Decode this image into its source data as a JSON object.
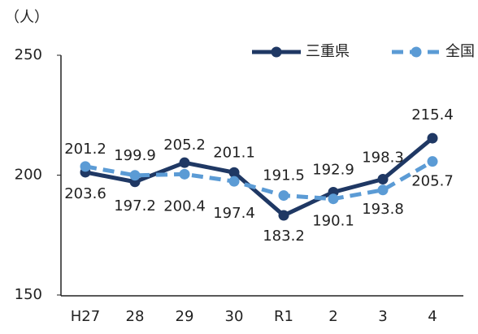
{
  "chart_data": {
    "type": "line",
    "y_label": "（人）",
    "categories": [
      "H27",
      "28",
      "29",
      "30",
      "R1",
      "2",
      "3",
      "4"
    ],
    "series": [
      {
        "name": "三重県",
        "color": "#1f3864",
        "dashed": false,
        "values": [
          201.2,
          197.2,
          205.2,
          201.1,
          183.2,
          192.9,
          198.3,
          215.4
        ]
      },
      {
        "name": "全国",
        "color": "#5b9bd5",
        "dashed": true,
        "values": [
          203.6,
          199.9,
          200.4,
          197.4,
          191.5,
          190.1,
          193.8,
          205.7
        ]
      }
    ],
    "ylim": [
      150,
      250
    ],
    "yticks": [
      150,
      200,
      250
    ],
    "grid": false,
    "legend": "top-right"
  }
}
